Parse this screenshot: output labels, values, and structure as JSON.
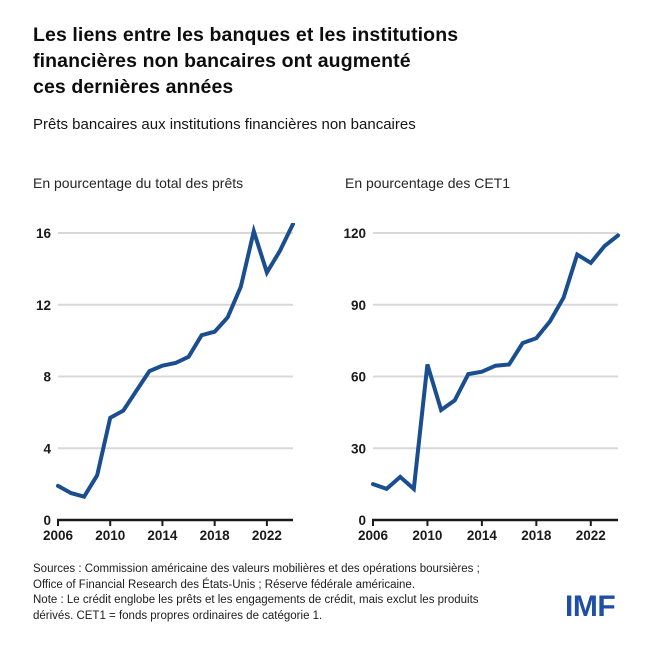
{
  "header": {
    "title_lines": [
      "Les liens entre les banques et les institutions",
      "financières non bancaires ont augmenté",
      "ces dernières années"
    ],
    "subtitle": "Prêts bancaires aux institutions financières non bancaires"
  },
  "chart_data": [
    {
      "type": "line",
      "title": "En pourcentage du total des prêts",
      "x": [
        2006,
        2007,
        2008,
        2009,
        2010,
        2011,
        2012,
        2013,
        2014,
        2015,
        2016,
        2017,
        2018,
        2019,
        2020,
        2021,
        2022,
        2023,
        2024
      ],
      "values": [
        1.9,
        1.5,
        1.3,
        2.5,
        5.7,
        6.1,
        7.2,
        8.3,
        8.6,
        8.75,
        9.1,
        10.3,
        10.5,
        11.3,
        13.0,
        16.1,
        13.8,
        15.0,
        16.5
      ],
      "ylim": [
        0,
        16
      ],
      "yticks": [
        0,
        4,
        8,
        12,
        16
      ],
      "xticks": [
        2006,
        2010,
        2014,
        2018,
        2022
      ],
      "line_color": "#1a4e8e",
      "grid": "horizontal",
      "legend": "none"
    },
    {
      "type": "line",
      "title": "En pourcentage des CET1",
      "x": [
        2006,
        2007,
        2008,
        2009,
        2010,
        2011,
        2012,
        2013,
        2014,
        2015,
        2016,
        2017,
        2018,
        2019,
        2020,
        2021,
        2022,
        2023,
        2024
      ],
      "values": [
        15,
        13,
        18,
        13,
        65,
        46,
        50,
        61,
        62,
        64.5,
        65,
        74,
        76,
        83,
        93,
        111,
        107.5,
        114.5,
        119
      ],
      "ylim": [
        0,
        120
      ],
      "yticks": [
        0,
        30,
        60,
        90,
        120
      ],
      "xticks": [
        2006,
        2010,
        2014,
        2018,
        2022
      ],
      "line_color": "#1a4e8e",
      "grid": "horizontal",
      "legend": "none"
    }
  ],
  "footer": {
    "lines": [
      "Sources : Commission américaine des valeurs mobilières et des opérations boursières ;",
      "Office of Financial Research des États-Unis ; Réserve fédérale américaine.",
      "Note : Le crédit englobe les prêts et les engagements de crédit, mais exclut les produits",
      "dérivés. CET1 = fonds propres ordinaires de catégorie 1."
    ],
    "logo": "IMF"
  },
  "colors": {
    "line_blue": "#1a4e8e",
    "grid_gray": "#d8d8d8",
    "axis_black": "#1a1a1a",
    "logo_blue": "#1e4fa5"
  }
}
